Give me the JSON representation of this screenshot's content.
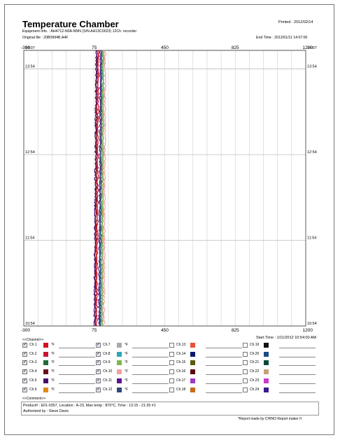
{
  "header": {
    "title": "Temperature Chamber",
    "printed": "Printed : 2012/02/14",
    "equipment": "Equipment Info. :  AH4712-N0A-NNN (S/N.AH13C0023) 12Ch. recorder",
    "original_file": "Original file : 20B0994B.A4F",
    "end_time": "End Time : 2012/01/11 14:07:00"
  },
  "chart_data": {
    "type": "line",
    "orientation": "vertical-time",
    "x_ticks": [
      "-300",
      "75",
      "450",
      "825",
      "1200"
    ],
    "xlim": [
      -300,
      1200
    ],
    "time_ticks": [
      "14:07",
      "13:54",
      "12:54",
      "11:54",
      "10:54"
    ],
    "time_range": [
      "10:54",
      "14:07"
    ],
    "grid": true,
    "series": [
      {
        "name": "Ch.1",
        "color": "#d4141e",
        "start": 83,
        "end": 93
      },
      {
        "name": "Ch.2",
        "color": "#c81432",
        "start": 88,
        "end": 98
      },
      {
        "name": "Ch.3",
        "color": "#1f6b3a",
        "start": 103,
        "end": 113
      },
      {
        "name": "Ch.4",
        "color": "#6a0f1a",
        "start": 79,
        "end": 88
      },
      {
        "name": "Ch.5",
        "color": "#4a0a6e",
        "start": 76,
        "end": 85
      },
      {
        "name": "Ch.6",
        "color": "#e08a1a",
        "start": 118,
        "end": 124
      },
      {
        "name": "Ch.7",
        "color": "#aaaaaa",
        "start": 120,
        "end": 126
      },
      {
        "name": "Ch.8",
        "color": "#2aa7b8",
        "start": 110,
        "end": 117
      },
      {
        "name": "Ch.9",
        "color": "#7db84a",
        "start": 114,
        "end": 121
      },
      {
        "name": "Ch.10",
        "color": "#f5a0a0",
        "start": 128,
        "end": 134
      },
      {
        "name": "Ch.11",
        "color": "#5a1490",
        "start": 100,
        "end": 108
      },
      {
        "name": "Ch.12",
        "color": "#2f4a7a",
        "start": 106,
        "end": 113
      }
    ]
  },
  "start_time": "Start Time : 1/11/2012 10:54:00 AM",
  "channel_section_title": "<<Channel>>",
  "channels": [
    {
      "label": "Ch.1",
      "color": "#d4141e",
      "unit": "°F",
      "checked": true
    },
    {
      "label": "Ch.2",
      "color": "#c81432",
      "unit": "°F",
      "checked": true
    },
    {
      "label": "Ch.3",
      "color": "#1f6b3a",
      "unit": "°F",
      "checked": true
    },
    {
      "label": "Ch.4",
      "color": "#6a0f1a",
      "unit": "°F",
      "checked": true
    },
    {
      "label": "Ch.5",
      "color": "#4a0a6e",
      "unit": "°F",
      "checked": true
    },
    {
      "label": "Ch.6",
      "color": "#e08a1a",
      "unit": "°F",
      "checked": true
    },
    {
      "label": "Ch.7",
      "color": "#aaaaaa",
      "unit": "°F",
      "checked": true
    },
    {
      "label": "Ch.8",
      "color": "#2aa7b8",
      "unit": "°F",
      "checked": true
    },
    {
      "label": "Ch.9",
      "color": "#7db84a",
      "unit": "°F",
      "checked": true
    },
    {
      "label": "Ch.10",
      "color": "#f5a0a0",
      "unit": "°F",
      "checked": true
    },
    {
      "label": "Ch.11",
      "color": "#5a1490",
      "unit": "°F",
      "checked": true
    },
    {
      "label": "Ch.12",
      "color": "#2f4a7a",
      "unit": "°F",
      "checked": true
    },
    {
      "label": "Ch.13",
      "color": "#e8503a",
      "unit": "",
      "checked": false
    },
    {
      "label": "Ch.14",
      "color": "#0a1a6e",
      "unit": "",
      "checked": false
    },
    {
      "label": "Ch.15",
      "color": "#5a5a10",
      "unit": "",
      "checked": false
    },
    {
      "label": "Ch.16",
      "color": "#5a0a0a",
      "unit": "",
      "checked": false
    },
    {
      "label": "Ch.17",
      "color": "#9a3ac8",
      "unit": "",
      "checked": false
    },
    {
      "label": "Ch.18",
      "color": "#c86a1a",
      "unit": "",
      "checked": false
    },
    {
      "label": "Ch.19",
      "color": "#111111",
      "unit": "",
      "checked": false
    },
    {
      "label": "Ch.20",
      "color": "#1a4a8a",
      "unit": "",
      "checked": false
    },
    {
      "label": "Ch.21",
      "color": "#0a4a3a",
      "unit": "",
      "checked": false
    },
    {
      "label": "Ch.22",
      "color": "#c8a07a",
      "unit": "",
      "checked": false
    },
    {
      "label": "Ch.23",
      "color": "#c83ac8",
      "unit": "",
      "checked": false
    },
    {
      "label": "Ch.24",
      "color": "#3a1a8a",
      "unit": "",
      "checked": false
    }
  ],
  "comment_section_title": "<<Comment>>",
  "comment": {
    "product": "Product# : E01-0357, Location : A-23, Max temp : 870°C, Time : 13:15  -  21:35 #1",
    "author": "Authorized by : Steve Davis"
  },
  "footer": "*Report made by CHINO Report maker II"
}
